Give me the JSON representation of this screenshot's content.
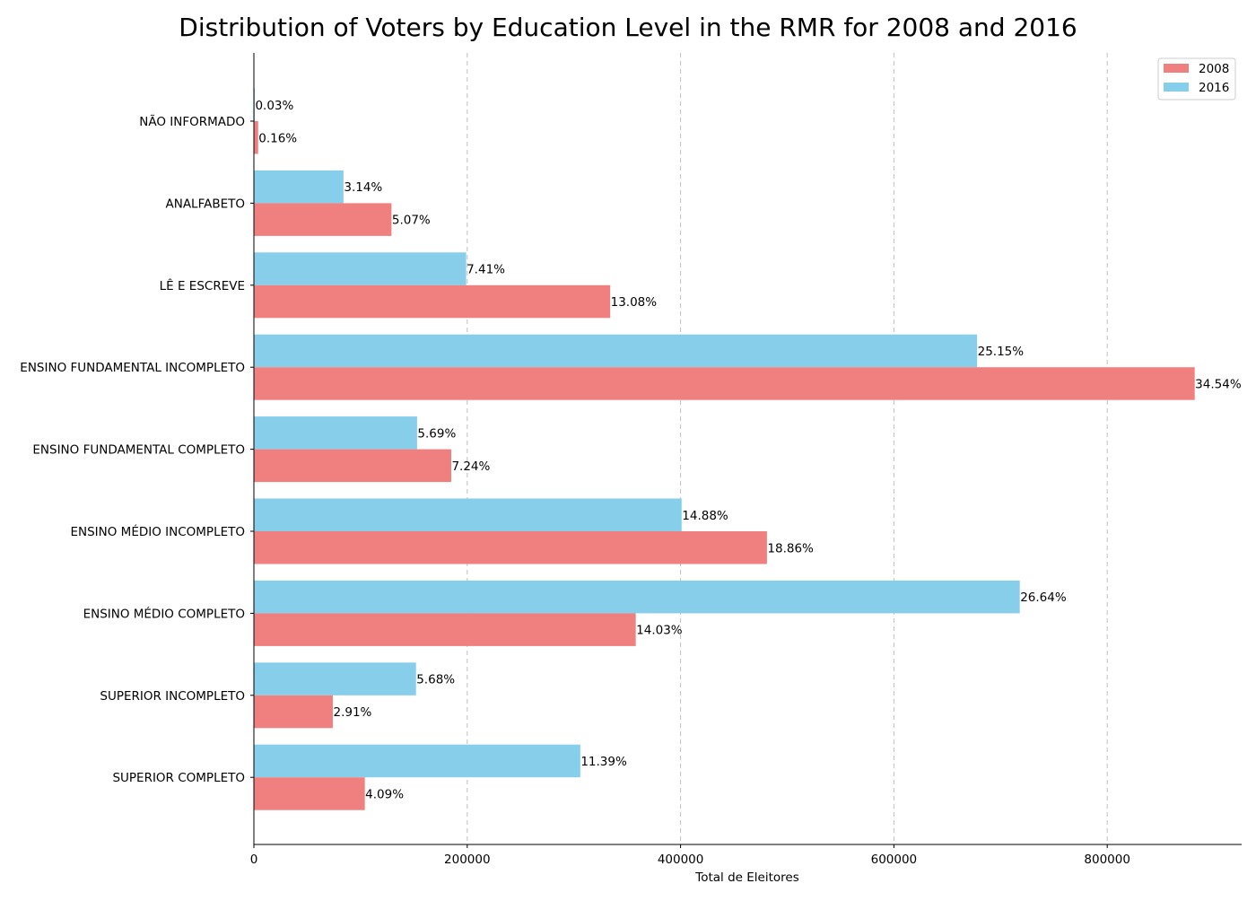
{
  "chart_data": {
    "type": "bar",
    "orientation": "horizontal",
    "title": "Distribution of Voters by Education Level in the RMR for 2008 and 2016",
    "xlabel": "Total de Eleitores",
    "ylabel": "",
    "xlim": [
      0,
      926000
    ],
    "xticks": [
      0,
      200000,
      400000,
      600000,
      800000
    ],
    "xtick_labels": [
      "0",
      "200000",
      "400000",
      "600000",
      "800000"
    ],
    "grid": "x-dashed",
    "legend_position": "top-right",
    "categories": [
      "NÃO INFORMADO",
      "ANALFABETO",
      "LÊ E ESCREVE",
      "ENSINO FUNDAMENTAL INCOMPLETO",
      "ENSINO FUNDAMENTAL COMPLETO",
      "ENSINO MÉDIO INCOMPLETO",
      "ENSINO MÉDIO COMPLETO",
      "SUPERIOR INCOMPLETO",
      "SUPERIOR COMPLETO"
    ],
    "series": [
      {
        "name": "2008",
        "color": "#f08080",
        "values": [
          4000,
          129000,
          334000,
          882000,
          185000,
          481000,
          358000,
          74000,
          104000
        ],
        "labels": [
          "0.16%",
          "5.07%",
          "13.08%",
          "34.54%",
          "7.24%",
          "18.86%",
          "14.03%",
          "2.91%",
          "4.09%"
        ]
      },
      {
        "name": "2016",
        "color": "#87ceeb",
        "values": [
          800,
          84000,
          199000,
          678000,
          153000,
          401000,
          718000,
          152000,
          306000
        ],
        "labels": [
          "0.03%",
          "3.14%",
          "7.41%",
          "25.15%",
          "5.69%",
          "14.88%",
          "26.64%",
          "5.68%",
          "11.39%"
        ]
      }
    ]
  }
}
